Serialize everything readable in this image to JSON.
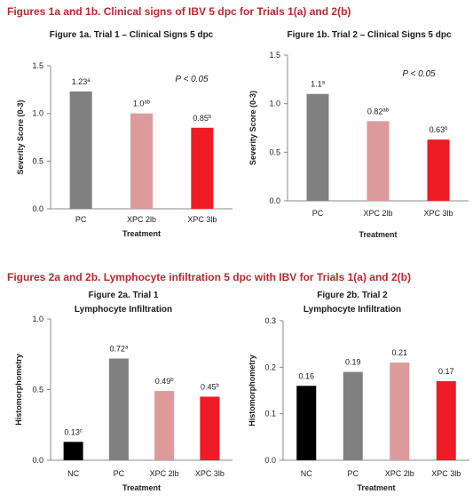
{
  "headings": {
    "fig1": "Figures 1a and 1b. Clinical signs of IBV 5 dpc for Trials 1(a) and 2(b)",
    "fig2": "Figures 2a and 2b. Lymphocyte infiltration 5 dpc with IBV for Trials 1(a) and 2(b)"
  },
  "colors": {
    "heading": "#b8282e",
    "NC": "#000000",
    "PC": "#808080",
    "XPC 2lb": "#dc9a9a",
    "XPC 3lb": "#ee1c24"
  },
  "chart_data": [
    {
      "id": "1a",
      "type": "bar",
      "title": [
        "Figure 1a. Trial 1 – Clinical Signs 5 dpc"
      ],
      "categories": [
        "PC",
        "XPC 2lb",
        "XPC 3lb"
      ],
      "values": [
        1.23,
        1.0,
        0.85
      ],
      "data_labels": [
        {
          "text": "1.23",
          "sup": "a"
        },
        {
          "text": "1.0",
          "sup": "ab"
        },
        {
          "text": "0.85",
          "sup": "b"
        }
      ],
      "xlabel": "Treatment",
      "ylabel": "Severity Score (0-3)",
      "ylim": [
        0,
        1.5
      ],
      "yticks": [
        "0.0",
        "0.5",
        "1.0",
        "1.5"
      ],
      "annotation": "P < 0.05",
      "grid": false
    },
    {
      "id": "1b",
      "type": "bar",
      "title": [
        "Figure 1b. Trial 2 – Clinical Signs 5 dpc"
      ],
      "categories": [
        "PC",
        "XPC 2lb",
        "XPC 3lb"
      ],
      "values": [
        1.1,
        0.82,
        0.63
      ],
      "data_labels": [
        {
          "text": "1.1",
          "sup": "a"
        },
        {
          "text": "0.82",
          "sup": "ab"
        },
        {
          "text": "0.63",
          "sup": "b"
        }
      ],
      "xlabel": "Treatment",
      "ylabel": "Severity Score (0-3)",
      "ylim": [
        0,
        1.5
      ],
      "yticks": [
        "0.0",
        "0.5",
        "1.0",
        "1.5"
      ],
      "annotation": "P < 0.05",
      "grid": false
    },
    {
      "id": "2a",
      "type": "bar",
      "title": [
        "Figure 2a. Trial 1",
        "Lymphocyte Infiltration"
      ],
      "categories": [
        "NC",
        "PC",
        "XPC 2lb",
        "XPC 3lb"
      ],
      "values": [
        0.13,
        0.72,
        0.49,
        0.45
      ],
      "data_labels": [
        {
          "text": "0.13",
          "sup": "c"
        },
        {
          "text": "0.72",
          "sup": "a"
        },
        {
          "text": "0.49",
          "sup": "b"
        },
        {
          "text": "0.45",
          "sup": "b"
        }
      ],
      "xlabel": "Treatment",
      "ylabel": "Histomorphometry",
      "ylim": [
        0,
        1.0
      ],
      "yticks": [
        "0.0",
        "0.5",
        "1.0"
      ],
      "annotation": "",
      "grid": false
    },
    {
      "id": "2b",
      "type": "bar",
      "title": [
        "Figure 2b. Trial 2",
        "Lymphocyte Infiltration"
      ],
      "categories": [
        "NC",
        "PC",
        "XPC 2lb",
        "XPC 3lb"
      ],
      "values": [
        0.16,
        0.19,
        0.21,
        0.17
      ],
      "data_labels": [
        {
          "text": "0.16",
          "sup": ""
        },
        {
          "text": "0.19",
          "sup": ""
        },
        {
          "text": "0.21",
          "sup": ""
        },
        {
          "text": "0.17",
          "sup": ""
        }
      ],
      "xlabel": "Treatment",
      "ylabel": "Histomorphometry",
      "ylim": [
        0,
        0.3
      ],
      "yticks": [
        "0.0",
        "0.1",
        "0.2",
        "0.3"
      ],
      "annotation": "",
      "grid": false
    }
  ]
}
